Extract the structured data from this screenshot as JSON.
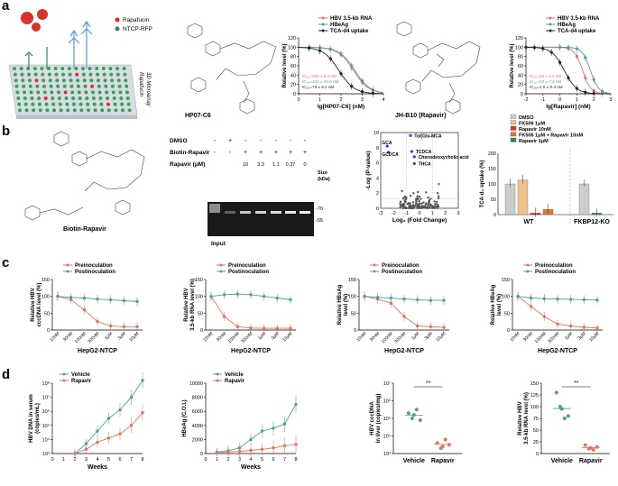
{
  "panels": {
    "a": "a",
    "b": "b",
    "c": "c",
    "d": "d"
  },
  "colors": {
    "red": "#e8735a",
    "teal": "#4f9f97",
    "black": "#222222",
    "gray": "#9e9e9e",
    "orange": "#f0c08a",
    "darkorange": "#e07a2c",
    "green": "#2e8b57"
  },
  "a": {
    "legend_rapafucin": "Rapafucin",
    "legend_ntcp": "NTCP-RFP",
    "plate_label_1": "Rapafucin",
    "plate_label_2": "3D Microarray",
    "compound1": "HP07-C6",
    "compound2": "JH-B10 (Rapavir)",
    "chart1": {
      "legend": [
        "HBV 3.5-kb RNA",
        "HBeAg",
        "TCA-d4 uptake"
      ],
      "ic50": [
        "IC₅₀=390 ± 9.2 nM",
        "IC₅₀=442 ± 16.8 nM",
        "IC₅₀=79 ± 8.2 nM"
      ],
      "ylabel": "Relative level (%)",
      "xlabel": "lg[HP07-C6] (nM)",
      "yticks": [
        "0",
        "20",
        "40",
        "60",
        "80",
        "100",
        "120"
      ],
      "xticks": [
        "0",
        "1",
        "2",
        "3",
        "4"
      ]
    },
    "chart2": {
      "legend": [
        "HBV 3.5-kb RNA",
        "HBeAg",
        "TCA-d4 uptake"
      ],
      "ic50": [
        "IC₅₀=22 ± 2.3 nM",
        "IC₅₀=63 ± 7.2 nM",
        "IC₅₀=1.8 ± 0.3 nM"
      ],
      "ylabel": "Relative level (%)",
      "xlabel": "lg[Rapavir] (nM)",
      "yticks": [
        "0",
        "20",
        "40",
        "60",
        "80",
        "100",
        "120"
      ],
      "xticks": [
        "-2",
        "-1",
        "0",
        "1",
        "2",
        "3"
      ]
    }
  },
  "b": {
    "compound": "Biotin-Rapavir",
    "gel": {
      "row_dmso": "DMSO",
      "row_biotin": "Biotin-Rapavir",
      "row_rapavir": "Rapavir (μM)",
      "dmso_marks": [
        "-",
        "+",
        "-",
        "-",
        "-",
        "-",
        "-"
      ],
      "biotin_marks": [
        "-",
        "-",
        "+",
        "+",
        "+",
        "+",
        "+"
      ],
      "rapavir_marks": [
        "",
        "",
        "10",
        "3.3",
        "1.1",
        "0.37",
        "0"
      ],
      "size_label": "Size",
      "kda_label": "(kDa)",
      "markers": [
        "-70",
        "-55"
      ],
      "input_label": "Input"
    },
    "volcano": {
      "ylabel": "-Log (P-value)",
      "xlabel": "Log₂ (Fold Change)",
      "yticks": [
        "0",
        "2",
        "4",
        "6",
        "8",
        "10"
      ],
      "xticks": [
        "-3",
        "-2",
        "-1",
        "0",
        "1",
        "2",
        "3"
      ],
      "labels": [
        "Tol[Glu-MCA",
        "GCA",
        "GCDCA",
        "TCDCA",
        "Chenodeoxycholic acid",
        "THCA"
      ]
    },
    "bar": {
      "legend": [
        "DMSO",
        "FK506 1μM",
        "Rapavir 10nM",
        "FK506 1μM + Rapavir 10nM",
        "Rapavir 1μM"
      ],
      "ylabel": "TCA-d₄ uptake (%)",
      "yticks": [
        "0",
        "50",
        "100",
        "150",
        "200"
      ],
      "groups": [
        "WT",
        "FKBP12-KO"
      ],
      "wt_values": [
        100,
        113,
        5,
        17
      ],
      "ko_values": [
        100,
        5
      ]
    }
  },
  "c": {
    "legend": [
      "Preinoculation",
      "Postinoculation"
    ],
    "xlabel": "HepG2-NTCP",
    "xticks": [
      "10nM",
      "30nM",
      "100nM",
      "300nM",
      "1μM",
      "3μM",
      "10μM"
    ],
    "yticks": [
      "0",
      "50",
      "100",
      "150"
    ],
    "charts": [
      {
        "ylabel": [
          "Relative HBV",
          "cccDNA level (%)"
        ],
        "pre": [
          100,
          90,
          60,
          25,
          12,
          10,
          10
        ],
        "post": [
          100,
          97,
          95,
          92,
          90,
          87,
          85
        ]
      },
      {
        "ylabel": [
          "Relative HBV",
          "3.5-kb RNA level (%)"
        ],
        "pre": [
          100,
          40,
          10,
          6,
          5,
          5,
          5
        ],
        "post": [
          100,
          105,
          107,
          105,
          100,
          95,
          90
        ]
      },
      {
        "ylabel": [
          "Relative HBsAg",
          "level (%)"
        ],
        "pre": [
          100,
          92,
          80,
          40,
          12,
          10,
          8
        ],
        "post": [
          100,
          97,
          95,
          92,
          90,
          88,
          88
        ]
      },
      {
        "ylabel": [
          "Relative HBeAg",
          "level (%)"
        ],
        "pre": [
          100,
          70,
          40,
          18,
          12,
          8,
          6
        ],
        "post": [
          100,
          95,
          93,
          92,
          91,
          90,
          89
        ]
      }
    ]
  },
  "d": {
    "legend": [
      "Vehicle",
      "Rapavir"
    ],
    "chart1": {
      "ylabel": [
        "HBV DNA in serum",
        "(copies/mL)"
      ],
      "xlabel": "Weeks",
      "yticks": [
        "10³",
        "10⁴",
        "10⁵",
        "10⁶",
        "10⁷",
        "10⁸"
      ],
      "xticks": [
        "0",
        "1",
        "2",
        "3",
        "4",
        "5",
        "6",
        "7",
        "8"
      ],
      "vehicle": [
        3.0,
        3.7,
        4.6,
        5.5,
        6.1,
        7.0,
        8.2
      ],
      "rapavir": [
        3.0,
        3.3,
        3.8,
        4.1,
        4.4,
        5.0,
        5.9
      ]
    },
    "chart2": {
      "ylabel": "HBeAg (C.O.I.)",
      "xlabel": "Weeks",
      "yticks": [
        "0",
        "2000",
        "4000",
        "6000",
        "8000",
        "10000"
      ],
      "xticks": [
        "0",
        "1",
        "2",
        "3",
        "4",
        "5",
        "6",
        "7",
        "8"
      ],
      "vehicle": [
        200,
        400,
        800,
        2000,
        3200,
        3600,
        4200,
        7000
      ],
      "rapavir": [
        150,
        250,
        300,
        450,
        600,
        800,
        1100,
        1300
      ]
    },
    "chart3": {
      "ylabel": [
        "HBV cccDNA",
        "in liver (copies/mg)"
      ],
      "yticks": [
        "10³",
        "10⁴",
        "10⁵",
        "10⁶",
        "10⁷"
      ],
      "groups": [
        "Vehicle",
        "Rapavir"
      ],
      "sig": "**"
    },
    "chart4": {
      "ylabel": [
        "Relative HBV",
        "3.5-kb RNA level (%)"
      ],
      "yticks": [
        "0",
        "25",
        "50",
        "75",
        "100",
        "125",
        "150"
      ],
      "groups": [
        "Vehicle",
        "Rapavir"
      ],
      "sig": "**"
    }
  }
}
